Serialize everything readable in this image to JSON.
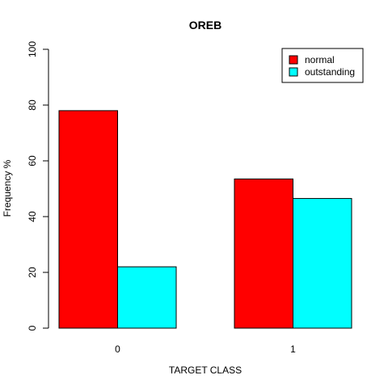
{
  "chart_data": {
    "type": "bar",
    "title": "OREB",
    "xlabel": "TARGET CLASS",
    "ylabel": "Frequency %",
    "categories": [
      "0",
      "1"
    ],
    "ylim": [
      0,
      100
    ],
    "yticks": [
      "0",
      "20",
      "40",
      "60",
      "80",
      "100"
    ],
    "grid": false,
    "legend_position": "top-right",
    "series": [
      {
        "name": "normal",
        "color": "#ff0000",
        "values": [
          78,
          53.5
        ]
      },
      {
        "name": "outstanding",
        "color": "#00ffff",
        "values": [
          22,
          46.5
        ]
      }
    ]
  }
}
